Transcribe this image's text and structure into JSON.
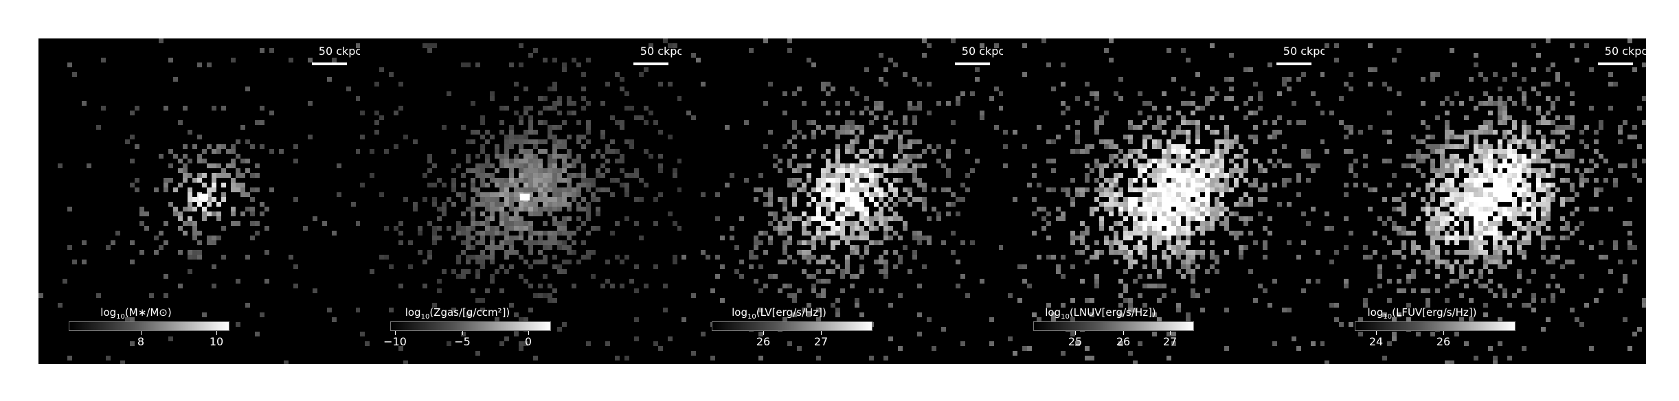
{
  "figure": {
    "scale_bar_label": "50 ckpc",
    "panels": [
      {
        "id": "stellar-mass",
        "colorbar": {
          "prefix": "log",
          "sub": "10",
          "rest": "(M∗/M⊙)"
        },
        "ticks": [
          {
            "label": "8",
            "frac": 0.45
          },
          {
            "label": "10",
            "frac": 0.92
          }
        ]
      },
      {
        "id": "metallicity",
        "colorbar": {
          "prefix": "log",
          "sub": "10",
          "rest": "(Zgas/[g/ccm²])"
        },
        "ticks": [
          {
            "label": "−10",
            "frac": 0.03
          },
          {
            "label": "−5",
            "frac": 0.45
          },
          {
            "label": "0",
            "frac": 0.86
          }
        ]
      },
      {
        "id": "luminosity-v",
        "colorbar": {
          "prefix": "log",
          "sub": "10",
          "rest": "(LV[erg/s/Hz])"
        },
        "ticks": [
          {
            "label": "26",
            "frac": 0.32
          },
          {
            "label": "27",
            "frac": 0.68
          }
        ]
      },
      {
        "id": "luminosity-nuv",
        "colorbar": {
          "prefix": "log",
          "sub": "10",
          "rest": "(LNUV[erg/s/Hz])"
        },
        "ticks": [
          {
            "label": "25",
            "frac": 0.26
          },
          {
            "label": "26",
            "frac": 0.56
          },
          {
            "label": "27",
            "frac": 0.85
          }
        ]
      },
      {
        "id": "luminosity-fuv",
        "colorbar": {
          "prefix": "log",
          "sub": "10",
          "rest": "(LFUV[erg/s/Hz])"
        },
        "ticks": [
          {
            "label": "24",
            "frac": 0.13
          },
          {
            "label": "26",
            "frac": 0.55
          }
        ]
      }
    ]
  },
  "colors": {
    "background": "#000000",
    "figure_background": "#ffffff",
    "colormap": "greys_r"
  }
}
